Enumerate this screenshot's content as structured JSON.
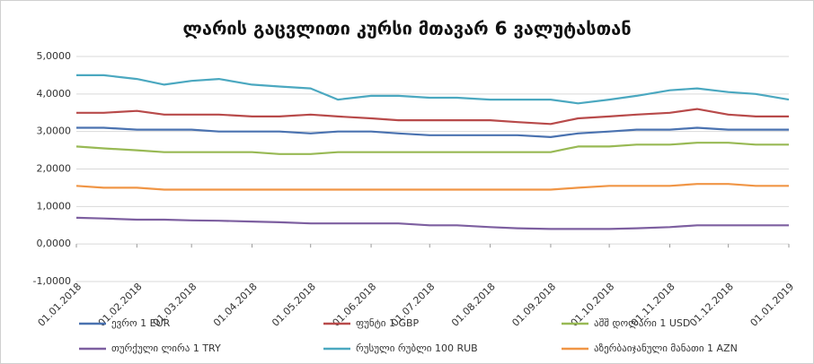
{
  "chart_data": {
    "type": "line",
    "title": "ლარის გაცვლითი კურსი მთავარ 6 ვალუტასთან",
    "x": [
      "01.01.2018",
      "15.01.2018",
      "01.02.2018",
      "15.02.2018",
      "01.03.2018",
      "15.03.2018",
      "01.04.2018",
      "15.04.2018",
      "01.05.2018",
      "15.05.2018",
      "01.06.2018",
      "15.06.2018",
      "01.07.2018",
      "15.07.2018",
      "01.08.2018",
      "15.08.2018",
      "01.09.2018",
      "15.09.2018",
      "01.10.2018",
      "15.10.2018",
      "01.11.2018",
      "15.11.2018",
      "01.12.2018",
      "15.12.2018",
      "01.01.2019"
    ],
    "xticks": [
      "01.01.2018",
      "01.02.2018",
      "01.03.2018",
      "01.04.2018",
      "01.05.2018",
      "01.06.2018",
      "01.07.2018",
      "01.08.2018",
      "01.09.2018",
      "01.10.2018",
      "01.11.2018",
      "01.12.2018",
      "01.01.2019"
    ],
    "ylim": [
      -1,
      5
    ],
    "yticks": [
      {
        "value": 5,
        "label": "5,0000"
      },
      {
        "value": 4,
        "label": "4,0000"
      },
      {
        "value": 3,
        "label": "3,0000"
      },
      {
        "value": 2,
        "label": "2,0000"
      },
      {
        "value": 1,
        "label": "1,0000"
      },
      {
        "value": 0,
        "label": "0,0000"
      },
      {
        "value": -1,
        "label": "-1,0000"
      }
    ],
    "grid": true,
    "legend": "bottom",
    "series": [
      {
        "name": "ევრო 1 EUR",
        "color": "#4a72b0",
        "values": [
          3.1,
          3.1,
          3.05,
          3.05,
          3.05,
          3.0,
          3.0,
          3.0,
          2.95,
          3.0,
          3.0,
          2.95,
          2.9,
          2.9,
          2.9,
          2.9,
          2.85,
          2.95,
          3.0,
          3.05,
          3.05,
          3.1,
          3.05,
          3.05,
          3.05
        ]
      },
      {
        "name": "ფუნტი 1 GBP",
        "color": "#b84a4a",
        "values": [
          3.5,
          3.5,
          3.55,
          3.45,
          3.45,
          3.45,
          3.4,
          3.4,
          3.45,
          3.4,
          3.35,
          3.3,
          3.3,
          3.3,
          3.3,
          3.25,
          3.2,
          3.35,
          3.4,
          3.45,
          3.5,
          3.6,
          3.45,
          3.4,
          3.4
        ]
      },
      {
        "name": "აშშ დოლარი 1 USD",
        "color": "#98b954",
        "values": [
          2.6,
          2.55,
          2.5,
          2.45,
          2.45,
          2.45,
          2.45,
          2.4,
          2.4,
          2.45,
          2.45,
          2.45,
          2.45,
          2.45,
          2.45,
          2.45,
          2.45,
          2.6,
          2.6,
          2.65,
          2.65,
          2.7,
          2.7,
          2.65,
          2.65
        ]
      },
      {
        "name": "თურქული ლირა  1 TRY",
        "color": "#7d5fa0",
        "values": [
          0.7,
          0.68,
          0.65,
          0.65,
          0.63,
          0.62,
          0.6,
          0.58,
          0.55,
          0.55,
          0.55,
          0.55,
          0.5,
          0.5,
          0.45,
          0.42,
          0.4,
          0.4,
          0.4,
          0.42,
          0.45,
          0.5,
          0.5,
          0.5,
          0.5
        ]
      },
      {
        "name": "რუსული რუბლი 100 RUB",
        "color": "#4ba8c0",
        "values": [
          4.5,
          4.5,
          4.4,
          4.25,
          4.35,
          4.4,
          4.25,
          4.2,
          4.15,
          3.85,
          3.95,
          3.95,
          3.9,
          3.9,
          3.85,
          3.85,
          3.85,
          3.75,
          3.85,
          3.95,
          4.1,
          4.15,
          4.05,
          4.0,
          3.85
        ]
      },
      {
        "name": "აზერბაიჯანული მანათი 1 AZN",
        "color": "#f09545",
        "values": [
          1.55,
          1.5,
          1.5,
          1.45,
          1.45,
          1.45,
          1.45,
          1.45,
          1.45,
          1.45,
          1.45,
          1.45,
          1.45,
          1.45,
          1.45,
          1.45,
          1.45,
          1.5,
          1.55,
          1.55,
          1.55,
          1.6,
          1.6,
          1.55,
          1.55
        ]
      }
    ]
  }
}
